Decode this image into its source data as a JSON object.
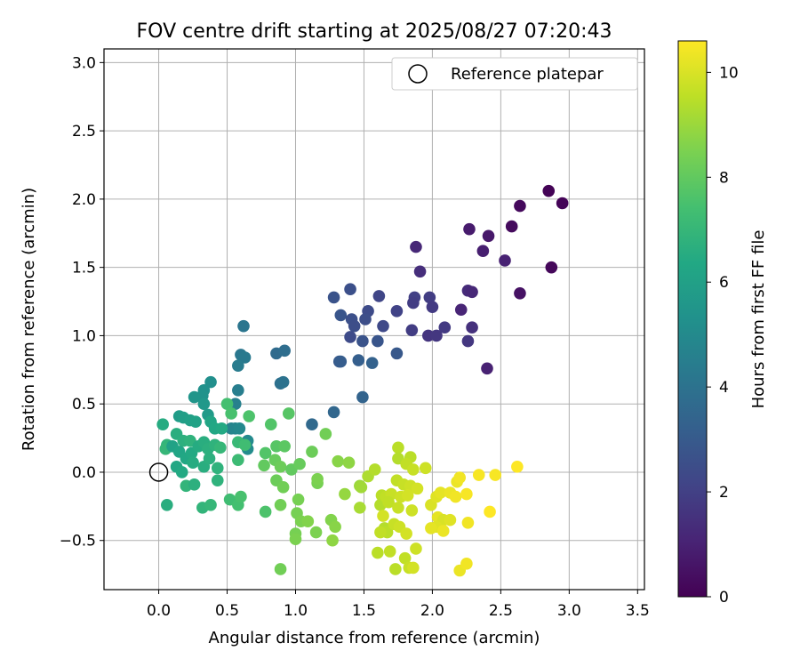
{
  "chart_data": {
    "type": "scatter",
    "title": "FOV centre drift starting at 2025/08/27 07:20:43",
    "xlabel": "Angular distance from reference (arcmin)",
    "ylabel": "Rotation from reference (arcmin)",
    "xlim": [
      -0.4,
      3.55
    ],
    "ylim": [
      -0.86,
      3.1
    ],
    "xticks": [
      0.0,
      0.5,
      1.0,
      1.5,
      2.0,
      2.5,
      3.0,
      3.5
    ],
    "xtick_labels": [
      "0.0",
      "0.5",
      "1.0",
      "1.5",
      "2.0",
      "2.5",
      "3.0",
      "3.5"
    ],
    "yticks": [
      -0.5,
      0.0,
      0.5,
      1.0,
      1.5,
      2.0,
      2.5,
      3.0
    ],
    "ytick_labels": [
      "−0.5",
      "0.0",
      "0.5",
      "1.0",
      "1.5",
      "2.0",
      "2.5",
      "3.0"
    ],
    "grid": true,
    "legend": {
      "position": "top-right",
      "entries": [
        "Reference platepar"
      ]
    },
    "reference_point": {
      "x": 0.0,
      "y": 0.0
    },
    "colorbar": {
      "label": "Hours from first FF file",
      "range": [
        0,
        10.6
      ],
      "ticks": [
        0,
        2,
        4,
        6,
        8,
        10
      ],
      "tick_labels": [
        "0",
        "2",
        "4",
        "6",
        "8",
        "10"
      ],
      "colormap": "viridis"
    },
    "points": [
      {
        "x": 2.85,
        "y": 2.06,
        "c": 0.05
      },
      {
        "x": 2.95,
        "y": 1.97,
        "c": 0.1
      },
      {
        "x": 2.64,
        "y": 1.95,
        "c": 0.25
      },
      {
        "x": 2.58,
        "y": 1.8,
        "c": 0.3
      },
      {
        "x": 2.87,
        "y": 1.5,
        "c": 0.2
      },
      {
        "x": 2.64,
        "y": 1.31,
        "c": 0.5
      },
      {
        "x": 2.27,
        "y": 1.78,
        "c": 0.8
      },
      {
        "x": 2.41,
        "y": 1.73,
        "c": 0.7
      },
      {
        "x": 2.37,
        "y": 1.62,
        "c": 0.9
      },
      {
        "x": 2.53,
        "y": 1.55,
        "c": 1.0
      },
      {
        "x": 1.88,
        "y": 1.65,
        "c": 1.2
      },
      {
        "x": 1.91,
        "y": 1.47,
        "c": 1.4
      },
      {
        "x": 2.26,
        "y": 1.33,
        "c": 1.3
      },
      {
        "x": 2.29,
        "y": 1.32,
        "c": 1.2
      },
      {
        "x": 2.21,
        "y": 1.19,
        "c": 1.1
      },
      {
        "x": 2.29,
        "y": 1.06,
        "c": 1.5
      },
      {
        "x": 2.26,
        "y": 0.96,
        "c": 1.7
      },
      {
        "x": 2.4,
        "y": 0.76,
        "c": 1.0
      },
      {
        "x": 1.98,
        "y": 1.28,
        "c": 1.9
      },
      {
        "x": 2.0,
        "y": 1.21,
        "c": 1.8
      },
      {
        "x": 1.87,
        "y": 1.28,
        "c": 2.0
      },
      {
        "x": 1.86,
        "y": 1.24,
        "c": 1.9
      },
      {
        "x": 1.97,
        "y": 1.0,
        "c": 1.6
      },
      {
        "x": 2.03,
        "y": 1.0,
        "c": 1.7
      },
      {
        "x": 2.09,
        "y": 1.06,
        "c": 1.8
      },
      {
        "x": 1.85,
        "y": 1.04,
        "c": 1.9
      },
      {
        "x": 1.74,
        "y": 1.18,
        "c": 2.1
      },
      {
        "x": 1.61,
        "y": 1.29,
        "c": 2.2
      },
      {
        "x": 1.64,
        "y": 1.07,
        "c": 2.3
      },
      {
        "x": 1.53,
        "y": 1.18,
        "c": 2.4
      },
      {
        "x": 1.51,
        "y": 1.12,
        "c": 2.5
      },
      {
        "x": 1.4,
        "y": 1.34,
        "c": 2.6
      },
      {
        "x": 1.28,
        "y": 1.28,
        "c": 2.7
      },
      {
        "x": 1.33,
        "y": 1.15,
        "c": 2.8
      },
      {
        "x": 1.41,
        "y": 1.12,
        "c": 2.6
      },
      {
        "x": 1.43,
        "y": 1.07,
        "c": 2.5
      },
      {
        "x": 1.4,
        "y": 0.99,
        "c": 2.4
      },
      {
        "x": 1.49,
        "y": 0.96,
        "c": 2.7
      },
      {
        "x": 1.6,
        "y": 0.96,
        "c": 2.8
      },
      {
        "x": 1.74,
        "y": 0.87,
        "c": 2.9
      },
      {
        "x": 1.32,
        "y": 0.81,
        "c": 3.0
      },
      {
        "x": 1.33,
        "y": 0.81,
        "c": 3.1
      },
      {
        "x": 1.46,
        "y": 0.82,
        "c": 3.2
      },
      {
        "x": 1.56,
        "y": 0.8,
        "c": 3.3
      },
      {
        "x": 1.49,
        "y": 0.55,
        "c": 3.4
      },
      {
        "x": 1.28,
        "y": 0.44,
        "c": 3.5
      },
      {
        "x": 1.12,
        "y": 0.35,
        "c": 3.6
      },
      {
        "x": 0.86,
        "y": 0.87,
        "c": 3.7
      },
      {
        "x": 0.92,
        "y": 0.89,
        "c": 3.8
      },
      {
        "x": 0.89,
        "y": 0.65,
        "c": 3.9
      },
      {
        "x": 0.91,
        "y": 0.66,
        "c": 4.0
      },
      {
        "x": 0.62,
        "y": 1.07,
        "c": 4.1
      },
      {
        "x": 0.6,
        "y": 0.86,
        "c": 4.2
      },
      {
        "x": 0.63,
        "y": 0.84,
        "c": 4.3
      },
      {
        "x": 0.58,
        "y": 0.78,
        "c": 4.4
      },
      {
        "x": 0.58,
        "y": 0.6,
        "c": 4.5
      },
      {
        "x": 0.56,
        "y": 0.5,
        "c": 4.6
      },
      {
        "x": 0.53,
        "y": 0.32,
        "c": 4.7
      },
      {
        "x": 0.56,
        "y": 0.32,
        "c": 4.8
      },
      {
        "x": 0.59,
        "y": 0.32,
        "c": 4.9
      },
      {
        "x": 0.65,
        "y": 0.23,
        "c": 5.0
      },
      {
        "x": 0.65,
        "y": 0.17,
        "c": 5.1
      },
      {
        "x": 0.38,
        "y": 0.66,
        "c": 5.2
      },
      {
        "x": 0.33,
        "y": 0.6,
        "c": 5.3
      },
      {
        "x": 0.32,
        "y": 0.56,
        "c": 5.4
      },
      {
        "x": 0.26,
        "y": 0.55,
        "c": 5.5
      },
      {
        "x": 0.33,
        "y": 0.5,
        "c": 5.6
      },
      {
        "x": 0.36,
        "y": 0.42,
        "c": 5.7
      },
      {
        "x": 0.15,
        "y": 0.41,
        "c": 5.8
      },
      {
        "x": 0.18,
        "y": 0.4,
        "c": 5.9
      },
      {
        "x": 0.23,
        "y": 0.38,
        "c": 6.0
      },
      {
        "x": 0.27,
        "y": 0.37,
        "c": 6.1
      },
      {
        "x": 0.38,
        "y": 0.37,
        "c": 6.2
      },
      {
        "x": 0.41,
        "y": 0.32,
        "c": 6.3
      },
      {
        "x": 0.46,
        "y": 0.32,
        "c": 6.4
      },
      {
        "x": 0.03,
        "y": 0.35,
        "c": 6.5
      },
      {
        "x": 0.13,
        "y": 0.28,
        "c": 6.6
      },
      {
        "x": 0.18,
        "y": 0.23,
        "c": 6.7
      },
      {
        "x": 0.23,
        "y": 0.23,
        "c": 6.8
      },
      {
        "x": 0.06,
        "y": 0.2,
        "c": 6.9
      },
      {
        "x": 0.05,
        "y": 0.17,
        "c": 7.0
      },
      {
        "x": 0.1,
        "y": 0.19,
        "c": 6.1
      },
      {
        "x": 0.15,
        "y": 0.15,
        "c": 6.2
      },
      {
        "x": 0.2,
        "y": 0.1,
        "c": 6.3
      },
      {
        "x": 0.24,
        "y": 0.14,
        "c": 6.4
      },
      {
        "x": 0.29,
        "y": 0.19,
        "c": 6.5
      },
      {
        "x": 0.33,
        "y": 0.22,
        "c": 6.6
      },
      {
        "x": 0.36,
        "y": 0.17,
        "c": 6.7
      },
      {
        "x": 0.41,
        "y": 0.2,
        "c": 6.8
      },
      {
        "x": 0.45,
        "y": 0.18,
        "c": 7.0
      },
      {
        "x": 0.13,
        "y": 0.04,
        "c": 6.3
      },
      {
        "x": 0.17,
        "y": 0.0,
        "c": 6.4
      },
      {
        "x": 0.25,
        "y": 0.07,
        "c": 6.5
      },
      {
        "x": 0.33,
        "y": 0.04,
        "c": 6.6
      },
      {
        "x": 0.37,
        "y": 0.1,
        "c": 6.7
      },
      {
        "x": 0.43,
        "y": 0.03,
        "c": 6.8
      },
      {
        "x": 0.2,
        "y": -0.1,
        "c": 6.9
      },
      {
        "x": 0.26,
        "y": -0.09,
        "c": 6.7
      },
      {
        "x": 0.43,
        "y": -0.06,
        "c": 6.8
      },
      {
        "x": 0.32,
        "y": -0.26,
        "c": 6.9
      },
      {
        "x": 0.38,
        "y": -0.24,
        "c": 7.0
      },
      {
        "x": 0.06,
        "y": -0.24,
        "c": 6.6
      },
      {
        "x": 0.52,
        "y": -0.2,
        "c": 7.3
      },
      {
        "x": 0.58,
        "y": -0.24,
        "c": 7.4
      },
      {
        "x": 0.6,
        "y": -0.18,
        "c": 7.5
      },
      {
        "x": 0.78,
        "y": -0.29,
        "c": 7.6
      },
      {
        "x": 0.58,
        "y": 0.09,
        "c": 7.2
      },
      {
        "x": 0.58,
        "y": 0.22,
        "c": 7.1
      },
      {
        "x": 0.63,
        "y": 0.2,
        "c": 7.3
      },
      {
        "x": 0.5,
        "y": 0.5,
        "c": 7.4
      },
      {
        "x": 0.53,
        "y": 0.43,
        "c": 7.5
      },
      {
        "x": 0.66,
        "y": 0.41,
        "c": 7.6
      },
      {
        "x": 0.82,
        "y": 0.35,
        "c": 7.7
      },
      {
        "x": 0.95,
        "y": 0.43,
        "c": 7.8
      },
      {
        "x": 0.78,
        "y": 0.14,
        "c": 7.7
      },
      {
        "x": 0.86,
        "y": 0.19,
        "c": 7.8
      },
      {
        "x": 0.92,
        "y": 0.19,
        "c": 7.9
      },
      {
        "x": 0.77,
        "y": 0.05,
        "c": 8.0
      },
      {
        "x": 0.85,
        "y": 0.09,
        "c": 8.1
      },
      {
        "x": 0.89,
        "y": 0.04,
        "c": 8.2
      },
      {
        "x": 0.97,
        "y": 0.02,
        "c": 8.0
      },
      {
        "x": 1.03,
        "y": 0.06,
        "c": 8.1
      },
      {
        "x": 1.12,
        "y": 0.15,
        "c": 8.2
      },
      {
        "x": 1.22,
        "y": 0.28,
        "c": 8.3
      },
      {
        "x": 0.86,
        "y": -0.06,
        "c": 8.2
      },
      {
        "x": 0.91,
        "y": -0.11,
        "c": 8.3
      },
      {
        "x": 1.02,
        "y": -0.2,
        "c": 8.4
      },
      {
        "x": 0.89,
        "y": -0.24,
        "c": 8.3
      },
      {
        "x": 1.01,
        "y": -0.3,
        "c": 8.4
      },
      {
        "x": 1.04,
        "y": -0.36,
        "c": 8.5
      },
      {
        "x": 1.09,
        "y": -0.36,
        "c": 8.6
      },
      {
        "x": 1.15,
        "y": -0.44,
        "c": 8.5
      },
      {
        "x": 1.0,
        "y": -0.45,
        "c": 8.4
      },
      {
        "x": 1.0,
        "y": -0.49,
        "c": 8.5
      },
      {
        "x": 0.89,
        "y": -0.71,
        "c": 8.3
      },
      {
        "x": 1.16,
        "y": -0.08,
        "c": 8.4
      },
      {
        "x": 1.16,
        "y": -0.05,
        "c": 8.5
      },
      {
        "x": 1.26,
        "y": -0.35,
        "c": 8.6
      },
      {
        "x": 1.29,
        "y": -0.4,
        "c": 8.7
      },
      {
        "x": 1.27,
        "y": -0.5,
        "c": 8.8
      },
      {
        "x": 1.31,
        "y": 0.08,
        "c": 8.7
      },
      {
        "x": 1.39,
        "y": 0.07,
        "c": 8.8
      },
      {
        "x": 1.36,
        "y": -0.16,
        "c": 8.9
      },
      {
        "x": 1.47,
        "y": -0.1,
        "c": 9.0
      },
      {
        "x": 1.48,
        "y": -0.11,
        "c": 9.1
      },
      {
        "x": 1.47,
        "y": -0.26,
        "c": 9.2
      },
      {
        "x": 1.53,
        "y": -0.03,
        "c": 9.3
      },
      {
        "x": 1.58,
        "y": 0.02,
        "c": 9.4
      },
      {
        "x": 1.63,
        "y": -0.17,
        "c": 9.5
      },
      {
        "x": 1.62,
        "y": -0.24,
        "c": 9.4
      },
      {
        "x": 1.66,
        "y": -0.18,
        "c": 9.6
      },
      {
        "x": 1.6,
        "y": -0.59,
        "c": 9.5
      },
      {
        "x": 1.65,
        "y": -0.41,
        "c": 9.4
      },
      {
        "x": 1.67,
        "y": -0.44,
        "c": 9.5
      },
      {
        "x": 1.69,
        "y": -0.58,
        "c": 9.6
      },
      {
        "x": 1.73,
        "y": -0.71,
        "c": 9.5
      },
      {
        "x": 1.62,
        "y": -0.44,
        "c": 9.6
      },
      {
        "x": 1.72,
        "y": -0.38,
        "c": 9.7
      },
      {
        "x": 1.76,
        "y": -0.4,
        "c": 9.8
      },
      {
        "x": 1.81,
        "y": -0.45,
        "c": 9.9
      },
      {
        "x": 1.8,
        "y": -0.63,
        "c": 9.6
      },
      {
        "x": 1.83,
        "y": -0.7,
        "c": 9.7
      },
      {
        "x": 1.88,
        "y": -0.56,
        "c": 9.8
      },
      {
        "x": 1.86,
        "y": -0.7,
        "c": 9.9
      },
      {
        "x": 1.75,
        "y": 0.18,
        "c": 9.5
      },
      {
        "x": 1.75,
        "y": 0.1,
        "c": 9.4
      },
      {
        "x": 1.84,
        "y": 0.11,
        "c": 9.5
      },
      {
        "x": 1.81,
        "y": 0.06,
        "c": 9.6
      },
      {
        "x": 1.86,
        "y": 0.02,
        "c": 9.7
      },
      {
        "x": 1.95,
        "y": 0.03,
        "c": 9.8
      },
      {
        "x": 1.74,
        "y": -0.06,
        "c": 9.6
      },
      {
        "x": 1.79,
        "y": -0.09,
        "c": 9.7
      },
      {
        "x": 1.84,
        "y": -0.1,
        "c": 9.8
      },
      {
        "x": 1.89,
        "y": -0.12,
        "c": 9.9
      },
      {
        "x": 1.7,
        "y": -0.16,
        "c": 9.7
      },
      {
        "x": 1.77,
        "y": -0.18,
        "c": 9.8
      },
      {
        "x": 1.82,
        "y": -0.17,
        "c": 9.9
      },
      {
        "x": 1.68,
        "y": -0.22,
        "c": 9.6
      },
      {
        "x": 1.75,
        "y": -0.26,
        "c": 9.7
      },
      {
        "x": 1.85,
        "y": -0.28,
        "c": 9.8
      },
      {
        "x": 1.64,
        "y": -0.32,
        "c": 9.9
      },
      {
        "x": 1.99,
        "y": -0.24,
        "c": 10.0
      },
      {
        "x": 2.03,
        "y": -0.18,
        "c": 10.1
      },
      {
        "x": 2.04,
        "y": -0.33,
        "c": 10.2
      },
      {
        "x": 2.08,
        "y": -0.35,
        "c": 10.0
      },
      {
        "x": 2.03,
        "y": -0.4,
        "c": 10.1
      },
      {
        "x": 1.99,
        "y": -0.41,
        "c": 10.2
      },
      {
        "x": 2.08,
        "y": -0.43,
        "c": 10.3
      },
      {
        "x": 2.13,
        "y": -0.35,
        "c": 10.1
      },
      {
        "x": 2.06,
        "y": -0.15,
        "c": 10.2
      },
      {
        "x": 2.13,
        "y": -0.15,
        "c": 10.3
      },
      {
        "x": 2.17,
        "y": -0.18,
        "c": 10.4
      },
      {
        "x": 2.18,
        "y": -0.07,
        "c": 10.3
      },
      {
        "x": 2.2,
        "y": -0.04,
        "c": 10.4
      },
      {
        "x": 2.25,
        "y": -0.16,
        "c": 10.5
      },
      {
        "x": 2.26,
        "y": -0.37,
        "c": 10.4
      },
      {
        "x": 2.2,
        "y": -0.72,
        "c": 10.3
      },
      {
        "x": 2.25,
        "y": -0.67,
        "c": 10.4
      },
      {
        "x": 2.34,
        "y": -0.02,
        "c": 10.5
      },
      {
        "x": 2.42,
        "y": -0.29,
        "c": 10.6
      },
      {
        "x": 2.46,
        "y": -0.02,
        "c": 10.5
      },
      {
        "x": 2.62,
        "y": 0.04,
        "c": 10.6
      }
    ]
  }
}
